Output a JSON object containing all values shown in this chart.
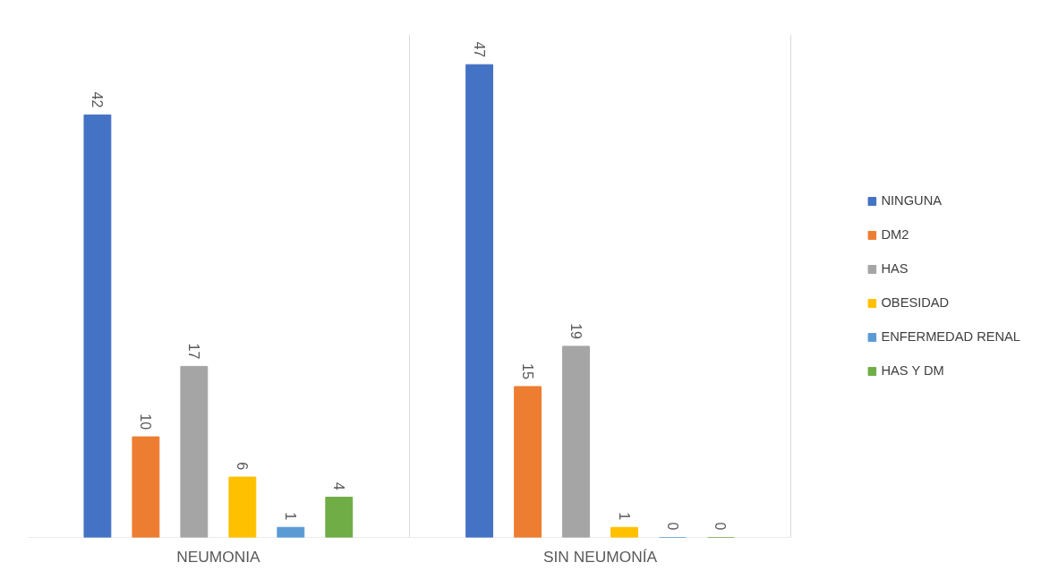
{
  "chart_data": {
    "type": "bar",
    "categories": [
      "NEUMONIA",
      "SIN NEUMONÍA"
    ],
    "series": [
      {
        "name": "NINGUNA",
        "color": "#4472c4",
        "values": [
          42,
          47
        ]
      },
      {
        "name": "DM2",
        "color": "#ed7d31",
        "values": [
          10,
          15
        ]
      },
      {
        "name": "HAS",
        "color": "#a5a5a5",
        "values": [
          17,
          19
        ]
      },
      {
        "name": "OBESIDAD",
        "color": "#ffc000",
        "values": [
          6,
          1
        ]
      },
      {
        "name": "ENFERMEDAD RENAL",
        "color": "#5b9bd5",
        "values": [
          1,
          0
        ]
      },
      {
        "name": "HAS Y DM",
        "color": "#70ad47",
        "values": [
          4,
          0
        ]
      }
    ],
    "ylim": [
      0,
      50
    ],
    "tick_labels": "x",
    "data_labels": true,
    "legend": "right",
    "grid": "x"
  }
}
